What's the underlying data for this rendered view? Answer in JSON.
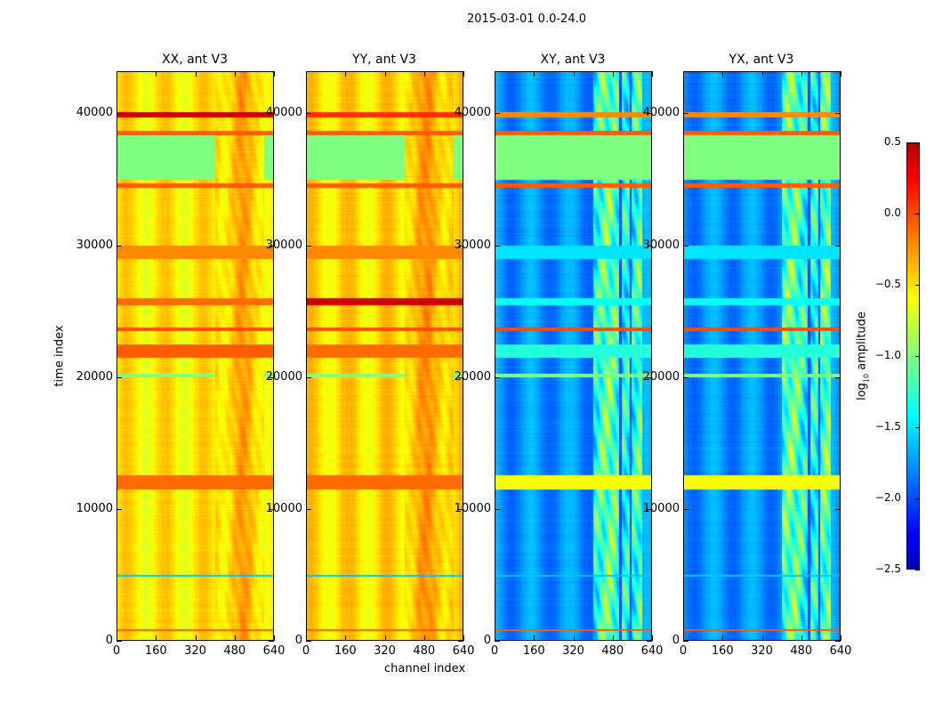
{
  "chart_data": {
    "type": "heatmap",
    "suptitle": "2015-03-01 0.0-24.0",
    "xlabel": "channel index",
    "ylabel": "time index",
    "xlim": [
      0,
      640
    ],
    "ylim": [
      0,
      43200
    ],
    "xticks": [
      "0",
      "160",
      "320",
      "480",
      "640"
    ],
    "xtick_values": [
      0,
      160,
      320,
      480,
      640
    ],
    "yticks": [
      "0",
      "10000",
      "20000",
      "30000",
      "40000"
    ],
    "ytick_values": [
      0,
      10000,
      20000,
      30000,
      40000
    ],
    "colormap": "jet",
    "colorbar": {
      "label": "log10 amplitude",
      "label_main": "log",
      "label_sub": "10",
      "label_rest": " amplitude",
      "range": [
        -2.5,
        0.5
      ],
      "ticks": [
        "0.5",
        "0.0",
        "−0.5",
        "−1.0",
        "−1.5",
        "−2.0",
        "−2.5"
      ],
      "tick_values": [
        0.5,
        0,
        -0.5,
        -1,
        -1.5,
        -2,
        -2.5
      ]
    },
    "panels": [
      {
        "title": "XX, ant V3",
        "base": -0.55,
        "active_channels": [
          400,
          600
        ],
        "active_offset": 0.2
      },
      {
        "title": "YY, ant V3",
        "base": -0.5,
        "active_channels": [
          400,
          600
        ],
        "active_offset": 0.2
      },
      {
        "title": "XY, ant V3",
        "base": -1.8,
        "active_channels": [
          400,
          600
        ],
        "active_offset": 0.9
      },
      {
        "title": "YX, ant V3",
        "base": -1.8,
        "active_channels": [
          400,
          600
        ],
        "active_offset": 0.9
      }
    ],
    "time_bands": [
      {
        "range": [
          35000,
          38500
        ],
        "values": [
          -1.0,
          -1.0,
          -1.0,
          -1.0
        ]
      },
      {
        "range": [
          39700,
          40100
        ],
        "values": [
          0.4,
          0.1,
          -0.2,
          -0.2
        ]
      },
      {
        "range": [
          38400,
          38700
        ],
        "values": [
          -0.05,
          -0.05,
          -0.05,
          -0.05
        ]
      },
      {
        "range": [
          34400,
          34700
        ],
        "values": [
          -0.05,
          -0.05,
          -0.05,
          -0.05
        ]
      },
      {
        "range": [
          29000,
          30000
        ],
        "values": [
          -0.2,
          -0.2,
          -1.5,
          -1.5
        ]
      },
      {
        "range": [
          25500,
          26000
        ],
        "values": [
          -0.1,
          0.4,
          -1.4,
          -1.4
        ]
      },
      {
        "range": [
          23500,
          23800
        ],
        "values": [
          0.0,
          0.0,
          0.0,
          0.0
        ]
      },
      {
        "range": [
          21500,
          22500
        ],
        "values": [
          -0.05,
          -0.1,
          -1.3,
          -1.3
        ]
      },
      {
        "range": [
          20000,
          20300
        ],
        "values": [
          -1.0,
          -1.0,
          -1.0,
          -1.0
        ]
      },
      {
        "range": [
          11500,
          12600
        ],
        "values": [
          -0.1,
          -0.1,
          -0.6,
          -0.6
        ]
      },
      {
        "range": [
          4900,
          5000
        ],
        "values": [
          -1.6,
          -1.6,
          -1.6,
          -1.6
        ]
      },
      {
        "range": [
          800,
          900
        ],
        "values": [
          -0.05,
          -0.05,
          -0.05,
          -0.05
        ]
      }
    ]
  }
}
